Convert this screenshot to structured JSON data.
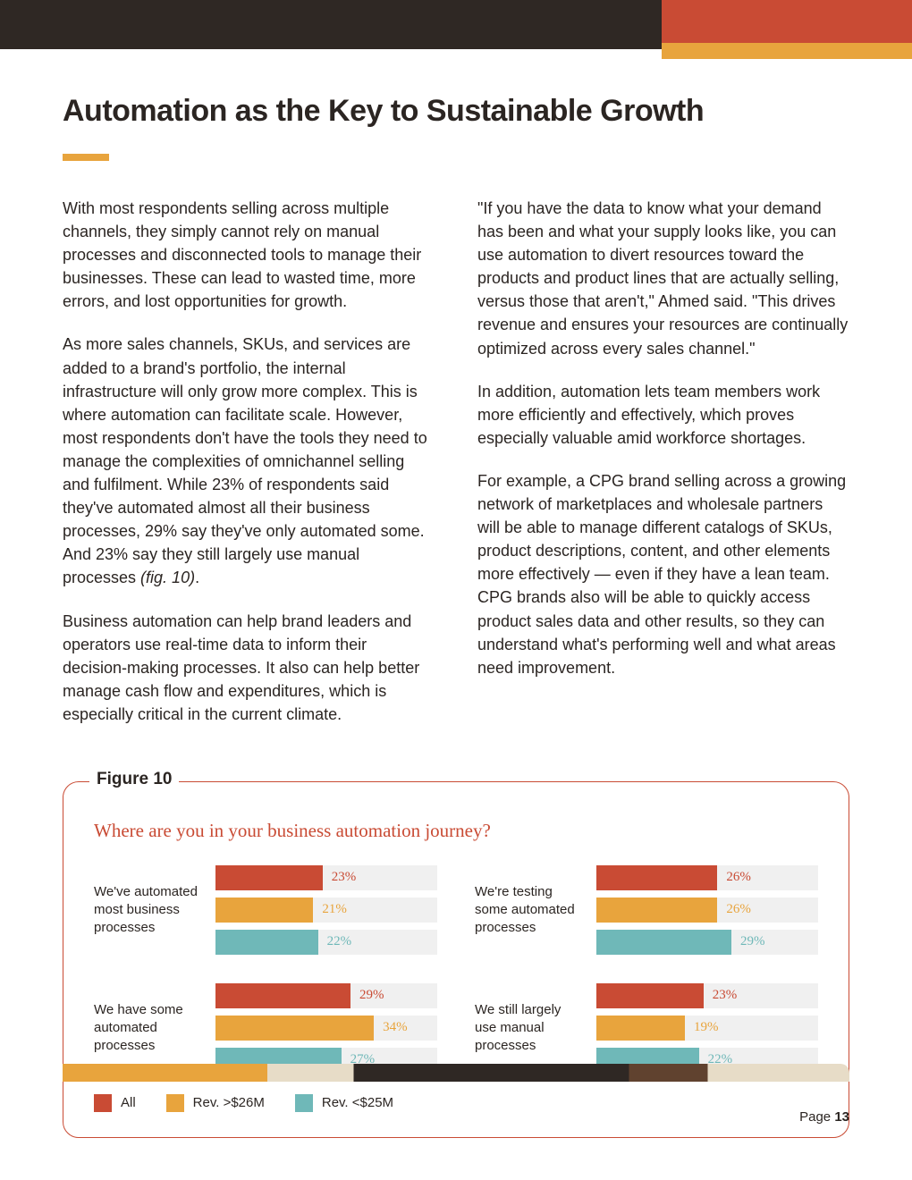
{
  "colors": {
    "series_all": "#c94b34",
    "series_high": "#e8a43d",
    "series_low": "#6fb8b8",
    "track": "#f0f0f0"
  },
  "title": "Automation as the Key to Sustainable Growth",
  "body": {
    "left": {
      "p1": "With most respondents selling across multiple channels, they simply cannot rely on manual processes and disconnected tools to manage their businesses. These can lead to wasted time, more errors, and lost opportunities for growth.",
      "p2a": "As more sales channels, SKUs, and services are added to a brand's portfolio, the internal infrastructure will only grow more complex. This is where automation can facilitate scale. However, most respondents don't have the tools they need to manage the complexities of omnichannel selling and fulfilment. While 23% of respondents said they've automated almost all their business processes, 29% say they've only automated some. And 23% say they still largely use manual processes ",
      "p2_fig": "(fig. 10)",
      "p2b": ".",
      "p3": "Business automation can help brand leaders and operators use real-time data to inform their decision-making processes. It also can help better manage cash flow and expenditures, which is especially critical in the current climate."
    },
    "right": {
      "p1": "\"If you have the data to know what your demand has been and what your supply looks like, you can use automation to divert resources toward the products and product lines that are actually selling, versus those that aren't,\" Ahmed said. \"This drives revenue and ensures your resources are continually optimized across every sales channel.\"",
      "p2": "In addition, automation lets team members work more efficiently and effectively, which proves especially valuable amid workforce shortages.",
      "p3": "For example, a CPG brand selling across a growing network of marketplaces and wholesale partners will be able to manage different catalogs of SKUs, product descriptions, content, and other elements more effectively — even if they have a lean team. CPG brands also will be able to quickly access product sales data and other results, so they can understand what's performing well and what areas need improvement."
    }
  },
  "figure": {
    "label": "Figure 10",
    "question": "Where are you in your business automation journey?",
    "legend": {
      "all": "All",
      "high": "Rev. >$26M",
      "low": "Rev. <$25M"
    },
    "blocks": [
      {
        "label": "We've automated most business processes",
        "bars": [
          {
            "series": "all",
            "value": 23,
            "text": "23%"
          },
          {
            "series": "high",
            "value": 21,
            "text": "21%"
          },
          {
            "series": "low",
            "value": 22,
            "text": "22%"
          }
        ]
      },
      {
        "label": "We're testing some automated processes",
        "bars": [
          {
            "series": "all",
            "value": 26,
            "text": "26%"
          },
          {
            "series": "high",
            "value": 26,
            "text": "26%"
          },
          {
            "series": "low",
            "value": 29,
            "text": "29%"
          }
        ]
      },
      {
        "label": "We have some automated processes",
        "bars": [
          {
            "series": "all",
            "value": 29,
            "text": "29%"
          },
          {
            "series": "high",
            "value": 34,
            "text": "34%"
          },
          {
            "series": "low",
            "value": 27,
            "text": "27%"
          }
        ]
      },
      {
        "label": "We still largely use manual processes",
        "bars": [
          {
            "series": "all",
            "value": 23,
            "text": "23%"
          },
          {
            "series": "high",
            "value": 19,
            "text": "19%"
          },
          {
            "series": "low",
            "value": 22,
            "text": "22%"
          }
        ]
      }
    ],
    "axis_max": 100,
    "scale_factor": 2.1
  },
  "footer": {
    "page_label": "Page ",
    "page_number": "13"
  }
}
